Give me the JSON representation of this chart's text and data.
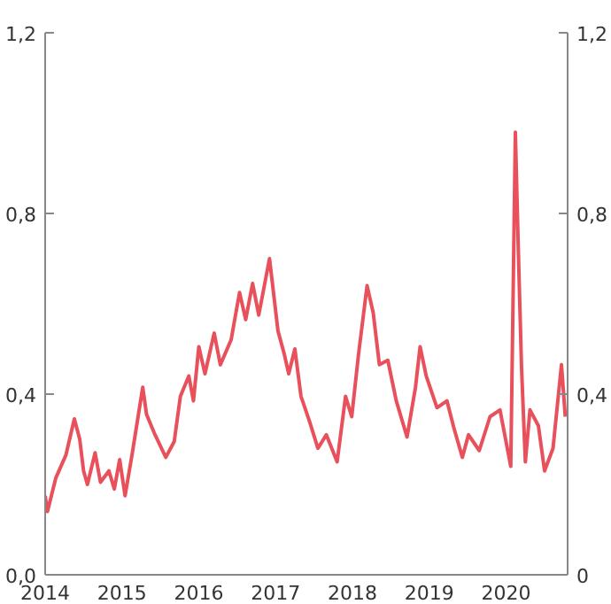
{
  "chart_data": {
    "type": "line",
    "x": [
      2014.0,
      2014.03,
      2014.14,
      2014.27,
      2014.38,
      2014.45,
      2014.5,
      2014.55,
      2014.65,
      2014.72,
      2014.83,
      2014.9,
      2014.97,
      2015.04,
      2015.13,
      2015.27,
      2015.32,
      2015.43,
      2015.57,
      2015.68,
      2015.76,
      2015.87,
      2015.93,
      2016.0,
      2016.08,
      2016.2,
      2016.28,
      2016.42,
      2016.53,
      2016.61,
      2016.7,
      2016.78,
      2016.92,
      2017.03,
      2017.11,
      2017.17,
      2017.25,
      2017.33,
      2017.44,
      2017.55,
      2017.66,
      2017.8,
      2017.91,
      2017.99,
      2018.08,
      2018.19,
      2018.27,
      2018.35,
      2018.46,
      2018.57,
      2018.71,
      2018.82,
      2018.88,
      2018.96,
      2019.1,
      2019.23,
      2019.32,
      2019.43,
      2019.51,
      2019.65,
      2019.79,
      2019.92,
      2020.06,
      2020.12,
      2020.16,
      2020.2,
      2020.25,
      2020.31,
      2020.42,
      2020.5,
      2020.61,
      2020.72,
      2020.77
    ],
    "series": [
      {
        "color": "#e8505b",
        "values": [
          0.175,
          0.14,
          0.215,
          0.265,
          0.345,
          0.3,
          0.23,
          0.2,
          0.27,
          0.205,
          0.23,
          0.19,
          0.255,
          0.175,
          0.265,
          0.415,
          0.355,
          0.31,
          0.26,
          0.295,
          0.395,
          0.44,
          0.385,
          0.505,
          0.445,
          0.535,
          0.465,
          0.52,
          0.625,
          0.565,
          0.645,
          0.575,
          0.7,
          0.54,
          0.49,
          0.445,
          0.5,
          0.395,
          0.34,
          0.28,
          0.31,
          0.25,
          0.395,
          0.35,
          0.49,
          0.64,
          0.58,
          0.465,
          0.475,
          0.385,
          0.305,
          0.415,
          0.505,
          0.44,
          0.37,
          0.385,
          0.325,
          0.26,
          0.31,
          0.275,
          0.35,
          0.365,
          0.24,
          0.98,
          0.71,
          0.46,
          0.25,
          0.365,
          0.33,
          0.23,
          0.28,
          0.465,
          0.35
        ]
      }
    ],
    "xlim": [
      2014,
      2020.8
    ],
    "xticks": [
      2014,
      2015,
      2016,
      2017,
      2018,
      2019,
      2020
    ],
    "ylim": [
      0,
      1.2
    ],
    "yticks": [
      {
        "value": 0,
        "label": "0,0"
      },
      {
        "value": 0.4,
        "label": "0,4"
      },
      {
        "value": 0.8,
        "label": "0,8"
      },
      {
        "value": 1.2,
        "label": "1,2"
      }
    ],
    "y2lim": [
      0,
      1.2
    ],
    "y2ticks": [
      {
        "value": 0,
        "label": "0"
      },
      {
        "value": 0.4,
        "label": "0,4"
      },
      {
        "value": 0.8,
        "label": "0,8"
      },
      {
        "value": 1.2,
        "label": "1,2"
      }
    ],
    "grid": false,
    "line_style": "solid"
  }
}
